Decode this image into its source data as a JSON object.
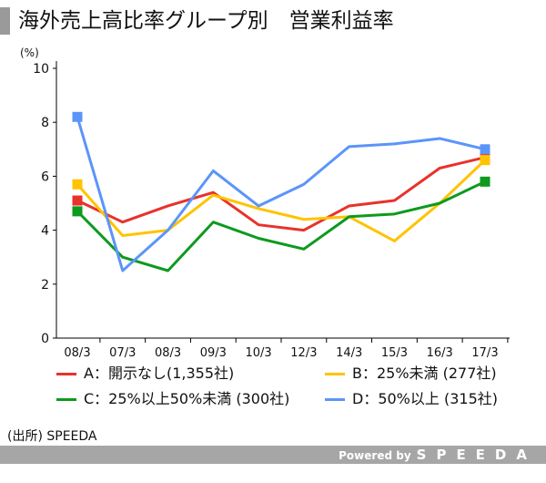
{
  "chart_data": {
    "type": "line",
    "title": "海外売上高比率グループ別　営業利益率",
    "ylabel": "(%)",
    "xlabel": "",
    "ylim": [
      0,
      10
    ],
    "yticks": [
      0,
      2,
      4,
      6,
      8,
      10
    ],
    "grid": false,
    "legend_position": "bottom",
    "categories": [
      "08/3",
      "07/3",
      "08/3",
      "09/3",
      "10/3",
      "12/3",
      "14/3",
      "15/3",
      "16/3",
      "17/3"
    ],
    "series": [
      {
        "name": "A：開示なし(1,355社)",
        "color": "#e8322a",
        "values": [
          5.1,
          4.3,
          4.9,
          5.4,
          4.2,
          4.0,
          4.9,
          5.1,
          6.3,
          6.7
        ]
      },
      {
        "name": "B：25%未満 (277社)",
        "color": "#ffc300",
        "values": [
          5.7,
          3.8,
          4.0,
          5.3,
          4.8,
          4.4,
          4.5,
          3.6,
          5.0,
          6.6
        ]
      },
      {
        "name": "C：25%以上50%未満 (300社)",
        "color": "#0d9a1e",
        "values": [
          4.7,
          3.0,
          2.5,
          4.3,
          3.7,
          3.3,
          4.5,
          4.6,
          5.0,
          5.8
        ]
      },
      {
        "name": "D：50%以上 (315社)",
        "color": "#5b95f9",
        "values": [
          8.2,
          2.5,
          4.0,
          6.2,
          4.9,
          5.7,
          7.1,
          7.2,
          7.4,
          7.0
        ]
      }
    ]
  },
  "source": "(出所) SPEEDA",
  "footer": {
    "powered_by": "Powered by",
    "brand": "SPEEDA"
  }
}
